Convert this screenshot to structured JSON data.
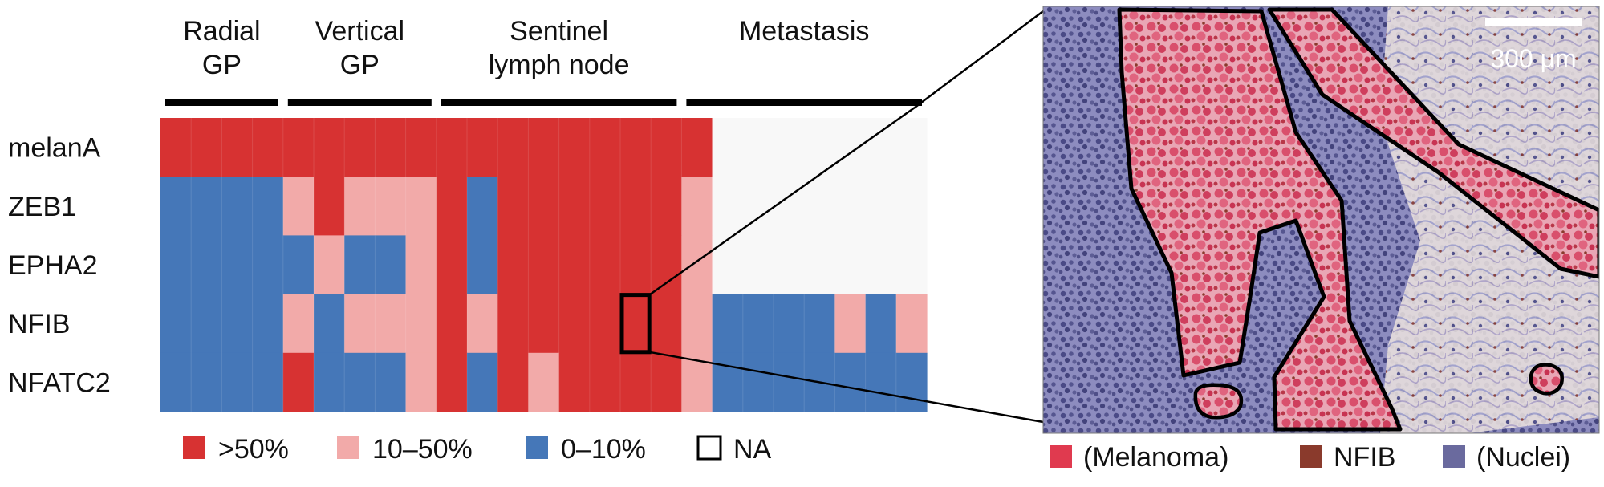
{
  "groups": [
    {
      "label_lines": [
        "Radial",
        "GP"
      ],
      "cols": 4
    },
    {
      "label_lines": [
        "Vertical",
        "GP"
      ],
      "cols": 5
    },
    {
      "label_lines": [
        "Sentinel",
        "lymph node"
      ],
      "cols": 8
    },
    {
      "label_lines": [
        "Metastasis"
      ],
      "cols": 8
    }
  ],
  "genes": [
    "melanA",
    "ZEB1",
    "EPHA2",
    "NFIB",
    "NFATC2"
  ],
  "heatmap": {
    "code_meaning": {
      "H": ">50%",
      "M": "10–50%",
      "L": "0–10%",
      "N": "NA"
    },
    "rows": [
      "HHHHHHHHHHHHHHHHHHNNNNNNN",
      "LLLLMHMMMHLHHHHHHMNNNNNNN",
      "LLLLLMLLMHLHHHHHHMNNNNNNN",
      "LLLLMLMMMHMHHHHHHMLLLLMLM",
      "LLLLHLLLMHLHMHHHHMLLLLLLL"
    ],
    "colors": {
      "H": "#d73232",
      "M": "#f2aaa9",
      "L": "#4577b8",
      "N": "#f8f8f8"
    },
    "highlight": {
      "row": 3,
      "col": 15
    }
  },
  "legend": [
    {
      "code": "H",
      "label": ">50%"
    },
    {
      "code": "M",
      "label": "10–50%"
    },
    {
      "code": "L",
      "label": "0–10%"
    },
    {
      "code": "N",
      "label": "NA"
    }
  ],
  "micrograph": {
    "scalebar_label": "300 μm",
    "legend": [
      {
        "color": "#e03a4f",
        "label": "(Melanoma)"
      },
      {
        "color": "#8a3a2c",
        "label": "NFIB"
      },
      {
        "color": "#6a6a9e",
        "label": "(Nuclei)"
      }
    ]
  }
}
